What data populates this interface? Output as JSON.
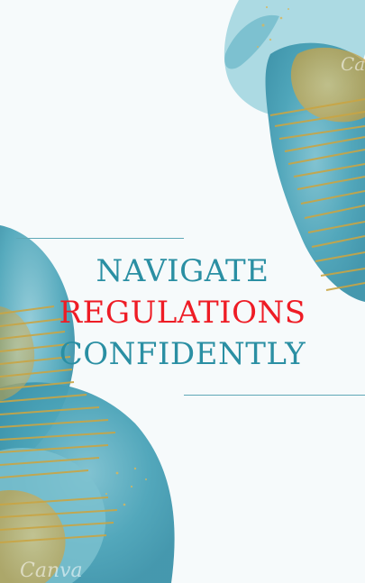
{
  "headline": {
    "line1": "NAVIGATE",
    "line2": "REGULATIONS",
    "line3": "CONFIDENTLY"
  },
  "watermark": "Canva",
  "colors": {
    "background": "#f6fafb",
    "teal_text": "#2a8fa3",
    "accent_red": "#ee1c25",
    "watercolor_teal": "#4aa3b8",
    "gold": "#c9a544",
    "rule_line": "#5fa8b6"
  }
}
